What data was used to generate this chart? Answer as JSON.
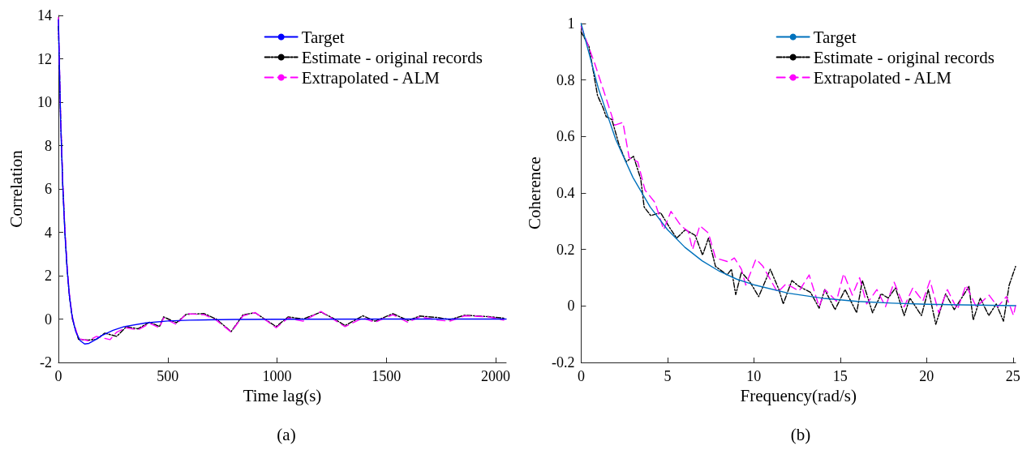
{
  "chart_data": [
    {
      "type": "line",
      "xlabel": "Time lag(s)",
      "ylabel": "Correlation",
      "annotations": [
        "(a)"
      ],
      "xlim": [
        0,
        2048
      ],
      "xticks": [
        0,
        500,
        1000,
        1500,
        2000
      ],
      "ylim": [
        -2,
        14
      ],
      "yticks": [
        -2,
        0,
        2,
        4,
        6,
        8,
        10,
        12,
        14
      ],
      "grid": false,
      "legend": "top right",
      "marker": "none",
      "series": [
        {
          "name": "Target",
          "color": "#0000ff",
          "line_style": "solid",
          "x": [
            0,
            10,
            20,
            30,
            40,
            50,
            60,
            70,
            80,
            100,
            120,
            140,
            170,
            200,
            250,
            300,
            400,
            500,
            600,
            800,
            1000,
            1500,
            2048
          ],
          "values": [
            13.8,
            9.2,
            6.1,
            3.9,
            2.3,
            1.1,
            0.3,
            -0.2,
            -0.6,
            -1.0,
            -1.15,
            -1.12,
            -0.95,
            -0.75,
            -0.52,
            -0.35,
            -0.18,
            -0.09,
            -0.05,
            -0.02,
            -0.01,
            0,
            0
          ]
        },
        {
          "name": "Estimate - original records",
          "color": "#000000",
          "line_style": "dashdot",
          "x": [
            0,
            10,
            20,
            30,
            40,
            50,
            64,
            92,
            137,
            174,
            212,
            267,
            311,
            363,
            418,
            462,
            481,
            540,
            585,
            667,
            722,
            790,
            845,
            900,
            996,
            1051,
            1119,
            1201,
            1256,
            1311,
            1393,
            1448,
            1530,
            1599,
            1653,
            1736,
            1790,
            1859,
            1968,
            2037
          ],
          "values": [
            13.5,
            9.3,
            6.2,
            4.0,
            2.3,
            1.1,
            0,
            -0.94,
            -0.97,
            -0.93,
            -0.65,
            -0.8,
            -0.35,
            -0.45,
            -0.14,
            -0.35,
            0.1,
            -0.17,
            0.22,
            0.25,
            0,
            -0.58,
            0.2,
            0.29,
            -0.35,
            0.1,
            0,
            0.32,
            0.04,
            -0.3,
            0.15,
            -0.1,
            0.25,
            -0.07,
            0.14,
            0.07,
            -0.03,
            0.18,
            0.11,
            0.04
          ]
        },
        {
          "name": "Extrapolated - ALM",
          "color": "#ff00ff",
          "line_style": "dashed",
          "x": [
            0,
            10,
            20,
            30,
            40,
            50,
            64,
            92,
            137,
            174,
            236,
            267,
            311,
            363,
            418,
            462,
            481,
            540,
            585,
            667,
            722,
            790,
            845,
            900,
            996,
            1051,
            1119,
            1201,
            1256,
            1311,
            1393,
            1448,
            1530,
            1599,
            1653,
            1736,
            1790,
            1859,
            1968,
            2037
          ],
          "values": [
            13.9,
            9.4,
            6.3,
            4.1,
            2.4,
            1.2,
            0.05,
            -0.9,
            -1.0,
            -0.8,
            -0.95,
            -0.6,
            -0.4,
            -0.5,
            -0.2,
            -0.4,
            0.05,
            -0.25,
            0.25,
            0.2,
            -0.05,
            -0.6,
            0.15,
            0.3,
            -0.4,
            0.05,
            -0.1,
            0.35,
            0,
            -0.35,
            0.05,
            -0.15,
            0.2,
            -0.15,
            0.1,
            -0.05,
            -0.1,
            0.15,
            0.1,
            -0.05
          ]
        }
      ]
    },
    {
      "type": "line",
      "xlabel": "Frequency(rad/s)",
      "ylabel": "Coherence",
      "annotations": [
        "(b)"
      ],
      "xlim": [
        0,
        25.15
      ],
      "xticks": [
        0,
        5,
        10,
        15,
        20,
        25
      ],
      "ylim": [
        -0.2,
        1
      ],
      "yticks": [
        -0.2,
        0,
        0.2,
        0.4,
        0.6,
        0.8,
        1
      ],
      "grid": false,
      "legend": "top right",
      "marker": "none",
      "series": [
        {
          "name": "Target",
          "color": "#0072bd",
          "line_style": "solid",
          "x": [
            0,
            1,
            2,
            3,
            4,
            5,
            6,
            7,
            8,
            9,
            10,
            12,
            14,
            16,
            18,
            20,
            22,
            25.15
          ],
          "values": [
            1,
            0.77,
            0.59,
            0.455,
            0.35,
            0.27,
            0.208,
            0.16,
            0.123,
            0.095,
            0.075,
            0.045,
            0.027,
            0.016,
            0.01,
            0.006,
            0.004,
            0.001
          ]
        },
        {
          "name": "Estimate - original records",
          "color": "#000000",
          "line_style": "dashdot",
          "x": [
            0,
            0.45,
            0.95,
            1.28,
            1.45,
            1.78,
            2.2,
            2.6,
            3.03,
            3.45,
            3.65,
            4.03,
            4.6,
            5.2,
            5.53,
            6.03,
            6.6,
            7.03,
            7.37,
            7.78,
            8.45,
            8.7,
            8.95,
            9.28,
            9.78,
            10.28,
            10.95,
            11.45,
            11.7,
            12.2,
            12.6,
            13.28,
            13.78,
            14.1,
            14.7,
            15.28,
            15.95,
            16.28,
            16.87,
            17.37,
            17.78,
            18.2,
            18.7,
            19.03,
            19.7,
            20.1,
            20.53,
            21.1,
            21.6,
            22.45,
            22.7,
            23.1,
            23.6,
            24.03,
            24.45,
            24.78,
            25.15
          ],
          "values": [
            0.97,
            0.92,
            0.745,
            0.7,
            0.67,
            0.66,
            0.57,
            0.51,
            0.53,
            0.45,
            0.35,
            0.32,
            0.33,
            0.27,
            0.24,
            0.27,
            0.25,
            0.18,
            0.24,
            0.14,
            0.11,
            0.13,
            0.04,
            0.12,
            0.084,
            0.033,
            0.13,
            0.058,
            0.007,
            0.09,
            0.07,
            0.048,
            -0.008,
            0.058,
            -0.013,
            0.058,
            -0.024,
            0.09,
            -0.024,
            0.043,
            0.028,
            0.064,
            -0.034,
            0.028,
            -0.034,
            0.058,
            -0.065,
            0.043,
            -0.013,
            0.069,
            -0.05,
            0.028,
            -0.034,
            0.007,
            -0.054,
            0.074,
            0.14
          ]
        },
        {
          "name": "Extrapolated - ALM",
          "color": "#ff00ff",
          "line_style": "dashed",
          "x": [
            0,
            0.78,
            1.45,
            1.95,
            2.42,
            2.78,
            3.28,
            3.7,
            4.28,
            4.78,
            5.2,
            5.78,
            6.2,
            6.45,
            6.87,
            7.37,
            7.78,
            8.53,
            8.87,
            9.28,
            9.53,
            10.12,
            10.53,
            11.37,
            11.87,
            12.62,
            13.2,
            13.78,
            14.12,
            14.78,
            15.2,
            15.7,
            16.12,
            16.53,
            17.12,
            17.62,
            18.12,
            18.7,
            19.2,
            19.78,
            20.2,
            20.7,
            21.2,
            21.78,
            22.28,
            22.87,
            23.62,
            24.12,
            24.62,
            25.03,
            25.15
          ],
          "values": [
            0.99,
            0.86,
            0.735,
            0.64,
            0.65,
            0.525,
            0.51,
            0.41,
            0.366,
            0.27,
            0.335,
            0.284,
            0.264,
            0.2,
            0.284,
            0.258,
            0.17,
            0.156,
            0.17,
            0.13,
            0.074,
            0.166,
            0.14,
            0.048,
            0.079,
            0.053,
            0.11,
            -0.003,
            0.058,
            0.017,
            0.115,
            0.038,
            0.1,
            0.007,
            0.058,
            -0.003,
            0.084,
            -0.003,
            0.064,
            0.017,
            0.09,
            -0.024,
            0.058,
            -0.013,
            0.074,
            -0.003,
            0.038,
            -0.003,
            0.033,
            -0.034,
            0.002
          ]
        }
      ]
    }
  ]
}
